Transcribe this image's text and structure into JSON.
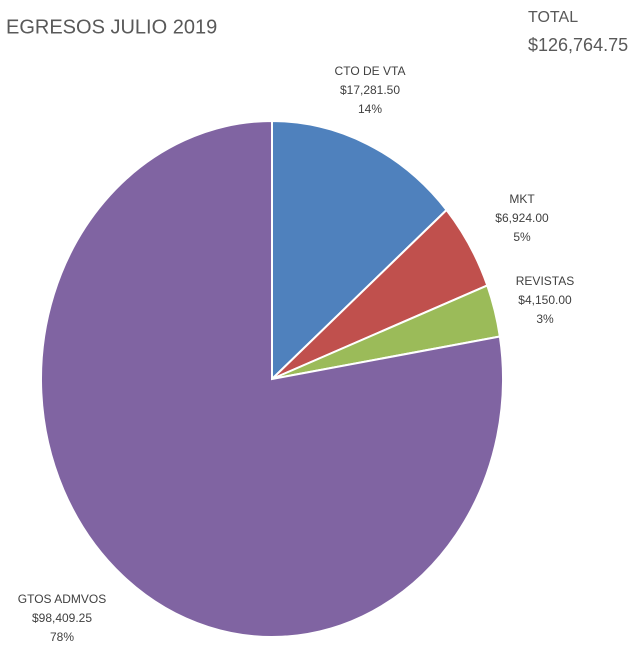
{
  "chart_data": {
    "type": "pie",
    "title": "EGRESOS JULIO 2019",
    "annotations": [
      "TOTAL",
      "$126,764.75"
    ],
    "categories": [
      "CTO DE VTA",
      "MKT",
      "REVISTAS",
      "GTOS ADMVOS"
    ],
    "values": [
      17281.5,
      6924.0,
      4150.0,
      98409.25
    ],
    "value_labels": [
      "$17,281.50",
      "$6,924.00",
      "$4,150.00",
      "$98,409.25"
    ],
    "percent_labels": [
      "14%",
      "5%",
      "3%",
      "78%"
    ],
    "colors": [
      "#4f81bd",
      "#c0504d",
      "#9bbb59",
      "#8064a2"
    ]
  }
}
